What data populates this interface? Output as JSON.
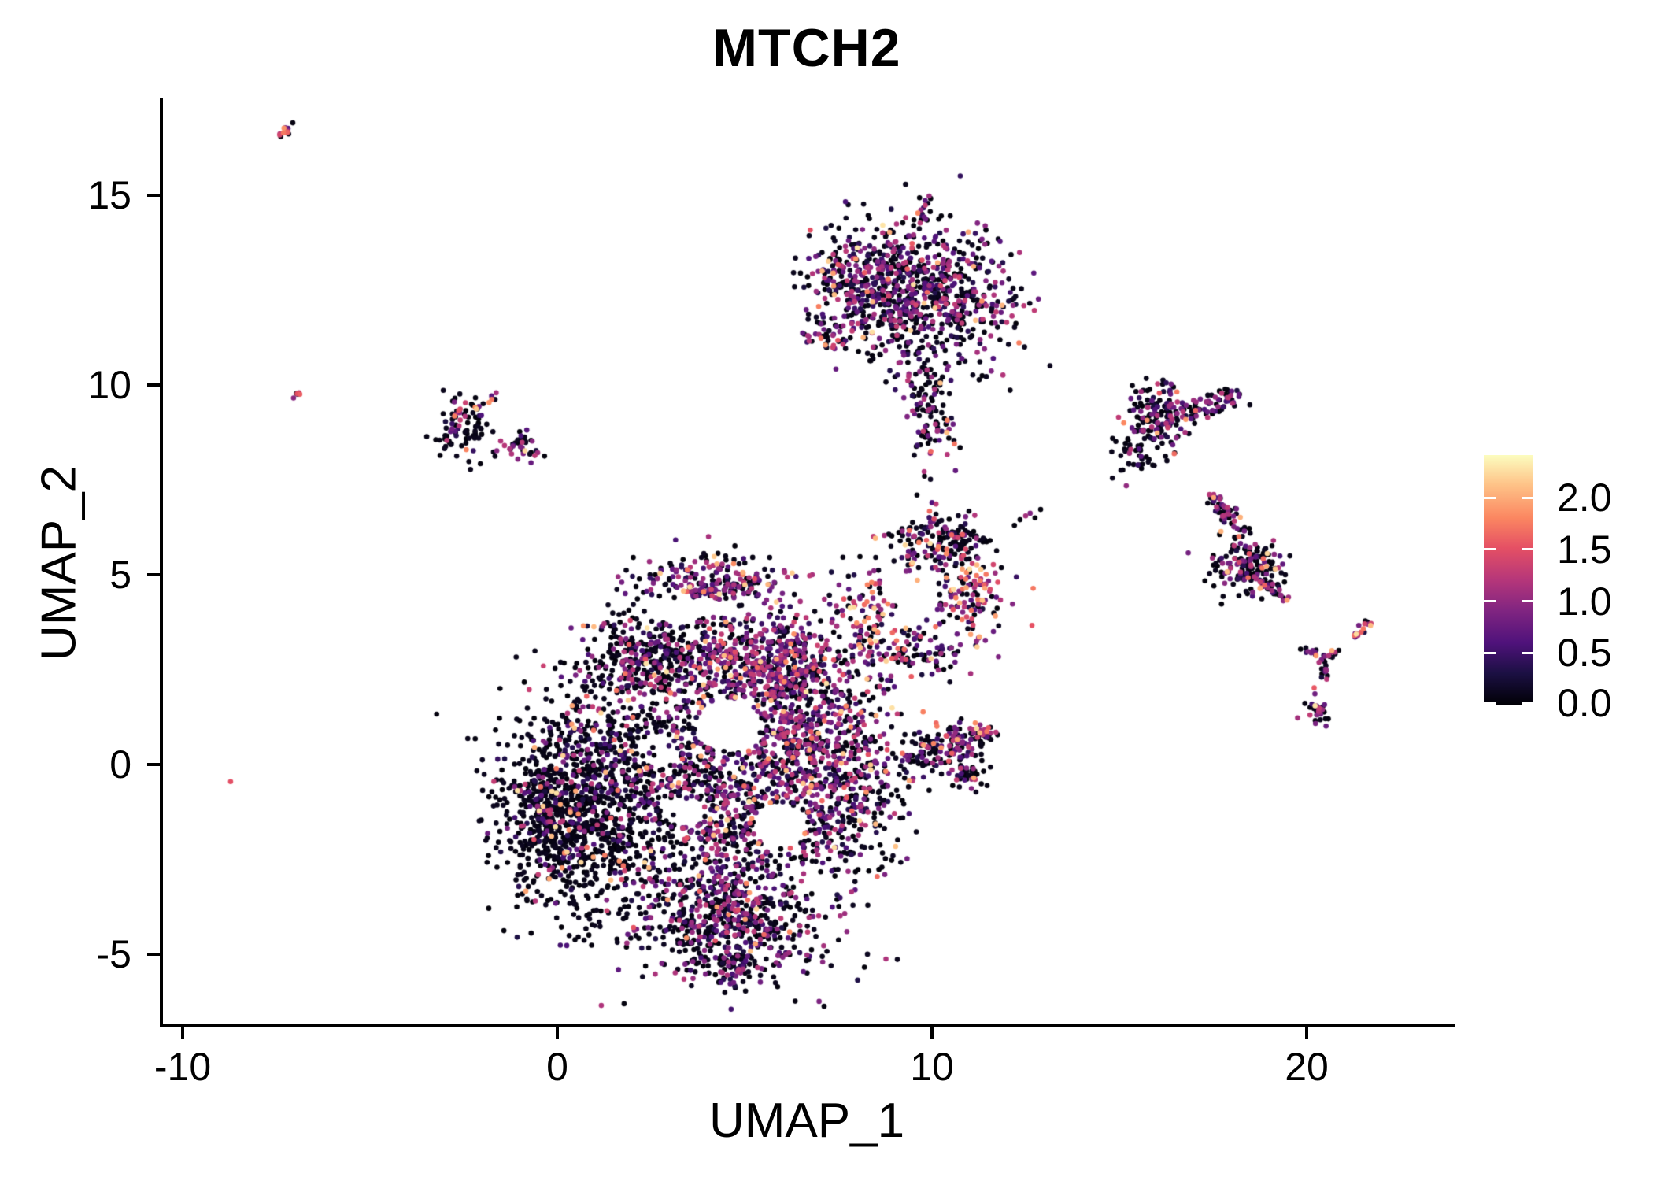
{
  "chart_data": {
    "type": "scatter",
    "title": "MTCH2",
    "xlabel": "UMAP_1",
    "ylabel": "UMAP_2",
    "xlim": [
      -10.57,
      23.89
    ],
    "ylim": [
      -6.87,
      17.51
    ],
    "grid": false,
    "x_ticks": [
      {
        "label": "-10",
        "value": -10
      },
      {
        "label": "0",
        "value": 0
      },
      {
        "label": "10",
        "value": 10
      },
      {
        "label": "20",
        "value": 20
      }
    ],
    "y_ticks": [
      {
        "label": "-5",
        "value": -5
      },
      {
        "label": "0",
        "value": 0
      },
      {
        "label": "5",
        "value": 5
      },
      {
        "label": "10",
        "value": 10
      },
      {
        "label": "15",
        "value": 15
      }
    ],
    "point_radius_px": 3.3,
    "color_scale": {
      "name": "magma",
      "domain": [
        0,
        2.4
      ],
      "legend_position": "right",
      "legend_ticks": [
        {
          "label": "2.0",
          "value": 2.0
        },
        {
          "label": "1.5",
          "value": 1.5
        },
        {
          "label": "1.0",
          "value": 1.0
        },
        {
          "label": "0.5",
          "value": 0.5
        },
        {
          "label": "0.0",
          "value": 0.0
        }
      ],
      "stops": [
        [
          0,
          "#000004"
        ],
        [
          0.13,
          "#1c1044"
        ],
        [
          0.25,
          "#4f127b"
        ],
        [
          0.38,
          "#812581"
        ],
        [
          0.5,
          "#b5367a"
        ],
        [
          0.63,
          "#e55064"
        ],
        [
          0.75,
          "#fb8761"
        ],
        [
          0.88,
          "#fec287"
        ],
        [
          1,
          "#fcfdbf"
        ]
      ]
    },
    "value_tiers": [
      [
        0.02,
        0.14
      ],
      [
        0.25,
        0.7
      ],
      [
        0.7,
        1.3
      ],
      [
        1.3,
        2.28
      ]
    ],
    "holes": [
      [
        4.6,
        1.05,
        0.85,
        0.7
      ],
      [
        5.95,
        -1.6,
        0.7,
        0.6
      ],
      [
        2.7,
        0.35,
        0.5,
        0.45
      ],
      [
        3.45,
        -1.25,
        0.5,
        0.4
      ],
      [
        3.5,
        4.12,
        1.2,
        0.28
      ],
      [
        9.7,
        4.45,
        0.5,
        0.45
      ]
    ],
    "clusters": [
      {
        "name": "top-left-streak",
        "type": "streak",
        "p": [
          -7.45,
          16.5,
          -7.1,
          16.85
        ],
        "jitter": 0.05,
        "n": 14,
        "mix": [
          0.25,
          0.2,
          0.35,
          0.2
        ]
      },
      {
        "name": "tiny-left-streak",
        "type": "streak",
        "p": [
          -7.0,
          9.68,
          -6.82,
          9.85
        ],
        "jitter": 0.04,
        "n": 8,
        "mix": [
          0.3,
          0.1,
          0.2,
          0.4
        ]
      },
      {
        "name": "left-cluster-body",
        "type": "gauss",
        "c": [
          -2.5,
          8.85
        ],
        "s": [
          0.42,
          0.42
        ],
        "rot": 0,
        "n": 80,
        "mix": [
          0.85,
          0.08,
          0.05,
          0.02
        ]
      },
      {
        "name": "left-cluster-warm-arc",
        "type": "streak",
        "p": [
          -2.75,
          9.1,
          -1.55,
          9.72
        ],
        "jitter": 0.09,
        "n": 16,
        "mix": [
          0.2,
          0.1,
          0.2,
          0.5
        ]
      },
      {
        "name": "left-cluster-purple-blob",
        "type": "gauss",
        "c": [
          -1.0,
          8.35
        ],
        "s": [
          0.25,
          0.16
        ],
        "rot": -20,
        "n": 26,
        "mix": [
          0.25,
          0.1,
          0.6,
          0.05
        ]
      },
      {
        "name": "left-cluster-east-dots",
        "type": "gauss",
        "c": [
          -0.85,
          8.6
        ],
        "s": [
          0.15,
          0.2
        ],
        "rot": 0,
        "n": 10,
        "mix": [
          0.8,
          0.1,
          0.1,
          0
        ]
      },
      {
        "name": "top-cluster-body",
        "type": "gauss",
        "c": [
          9.7,
          12.4
        ],
        "s": [
          1.25,
          0.95
        ],
        "rot": -8,
        "n": 780,
        "mix": [
          0.52,
          0.18,
          0.26,
          0.04
        ]
      },
      {
        "name": "top-cluster-left-lobe",
        "type": "gauss",
        "c": [
          7.9,
          12.8
        ],
        "s": [
          0.55,
          0.6
        ],
        "rot": 0,
        "n": 170,
        "mix": [
          0.45,
          0.2,
          0.3,
          0.05
        ]
      },
      {
        "name": "top-cluster-left-arm",
        "type": "gauss",
        "c": [
          7.25,
          11.35
        ],
        "s": [
          0.3,
          0.25
        ],
        "rot": 0,
        "n": 40,
        "mix": [
          0.35,
          0.15,
          0.3,
          0.2
        ]
      },
      {
        "name": "top-cluster-neck",
        "type": "gauss",
        "c": [
          9.95,
          9.5
        ],
        "s": [
          0.3,
          0.8
        ],
        "rot": 5,
        "n": 120,
        "mix": [
          0.62,
          0.14,
          0.2,
          0.04
        ]
      },
      {
        "name": "top-cluster-top-streak",
        "type": "streak",
        "p": [
          9.72,
          14.35,
          9.93,
          14.98
        ],
        "jitter": 0.06,
        "n": 11,
        "mix": [
          0.5,
          0.2,
          0.3,
          0
        ]
      },
      {
        "name": "top-cluster-neck-tip-dots",
        "type": "points",
        "pts": [
          [
            10.6,
            8.45,
            1.7
          ],
          [
            10.75,
            8.35,
            0.05
          ],
          [
            10.45,
            8.6,
            0.05
          ],
          [
            9.8,
            7.6,
            0.05
          ],
          [
            9.6,
            7.1,
            0.05
          ],
          [
            10.0,
            6.9,
            0.6
          ]
        ]
      },
      {
        "name": "bridge-dots",
        "type": "points",
        "pts": [
          [
            12.35,
            6.45,
            0.05
          ],
          [
            12.5,
            6.55,
            1.1
          ],
          [
            12.62,
            6.62,
            0.9
          ],
          [
            12.75,
            6.5,
            0.05
          ],
          [
            12.9,
            6.72,
            0.05
          ],
          [
            11.55,
            5.9,
            0.05
          ],
          [
            12.2,
            6.3,
            0.05
          ]
        ]
      },
      {
        "name": "mid-right-top-arc",
        "type": "gauss",
        "c": [
          10.0,
          5.85
        ],
        "s": [
          0.6,
          0.42
        ],
        "rot": -12,
        "n": 120,
        "mix": [
          0.55,
          0.1,
          0.2,
          0.15
        ]
      },
      {
        "name": "mid-right-black-clump",
        "type": "gauss",
        "c": [
          10.75,
          5.95
        ],
        "s": [
          0.3,
          0.3
        ],
        "rot": 0,
        "n": 55,
        "mix": [
          0.82,
          0.08,
          0.1,
          0
        ]
      },
      {
        "name": "mid-right-east-lobe",
        "type": "gauss",
        "c": [
          10.95,
          4.35
        ],
        "s": [
          0.5,
          0.7
        ],
        "rot": 10,
        "n": 130,
        "mix": [
          0.3,
          0.12,
          0.28,
          0.3
        ],
        "rh": true
      },
      {
        "name": "mid-right-west-arc",
        "type": "gauss",
        "c": [
          8.35,
          3.7
        ],
        "s": [
          0.42,
          0.75
        ],
        "rot": 0,
        "n": 110,
        "mix": [
          0.38,
          0.15,
          0.22,
          0.25
        ],
        "rh": true
      },
      {
        "name": "mid-right-south",
        "type": "gauss",
        "c": [
          9.6,
          2.95
        ],
        "s": [
          0.7,
          0.4
        ],
        "rot": 0,
        "n": 90,
        "mix": [
          0.45,
          0.2,
          0.25,
          0.1
        ],
        "rh": true
      },
      {
        "name": "main-left-lobe",
        "type": "gauss",
        "c": [
          0.55,
          -1.1
        ],
        "s": [
          1.05,
          1.45
        ],
        "rot": 12,
        "n": 1050,
        "mix": [
          0.8,
          0.09,
          0.07,
          0.04
        ]
      },
      {
        "name": "main-left-edge",
        "type": "gauss",
        "c": [
          -0.3,
          -1.4
        ],
        "s": [
          0.3,
          0.9
        ],
        "rot": 0,
        "n": 150,
        "mix": [
          0.88,
          0.06,
          0.04,
          0.02
        ]
      },
      {
        "name": "main-crown",
        "type": "gauss",
        "c": [
          4.2,
          4.85
        ],
        "s": [
          1.0,
          0.33
        ],
        "rot": 0,
        "n": 220,
        "mix": [
          0.42,
          0.18,
          0.3,
          0.1
        ],
        "rh": true
      },
      {
        "name": "main-upper-band-west",
        "type": "gauss",
        "c": [
          2.5,
          2.9
        ],
        "s": [
          0.85,
          0.62
        ],
        "rot": 0,
        "n": 380,
        "mix": [
          0.68,
          0.12,
          0.17,
          0.03
        ],
        "rh": true
      },
      {
        "name": "main-upper-band-east",
        "type": "gauss",
        "c": [
          5.3,
          2.7
        ],
        "s": [
          1.05,
          0.6
        ],
        "rot": 0,
        "n": 430,
        "mix": [
          0.3,
          0.2,
          0.42,
          0.08
        ],
        "rh": true
      },
      {
        "name": "main-center-west",
        "type": "gauss",
        "c": [
          2.9,
          0.3
        ],
        "s": [
          1.05,
          1.05
        ],
        "rot": 0,
        "n": 360,
        "mix": [
          0.55,
          0.2,
          0.2,
          0.05
        ],
        "rh": true
      },
      {
        "name": "main-center-east",
        "type": "gauss",
        "c": [
          6.3,
          1.0
        ],
        "s": [
          0.85,
          1.5
        ],
        "rot": 0,
        "n": 620,
        "mix": [
          0.36,
          0.2,
          0.37,
          0.07
        ],
        "rh": true
      },
      {
        "name": "main-center-south",
        "type": "gauss",
        "c": [
          4.9,
          -1.5
        ],
        "s": [
          1.3,
          0.9
        ],
        "rot": 0,
        "n": 430,
        "mix": [
          0.5,
          0.2,
          0.25,
          0.05
        ],
        "rh": true
      },
      {
        "name": "main-right-lobe",
        "type": "gauss",
        "c": [
          7.8,
          -0.4
        ],
        "s": [
          0.8,
          1.3
        ],
        "rot": 0,
        "n": 380,
        "mix": [
          0.5,
          0.18,
          0.27,
          0.05
        ],
        "rh": true
      },
      {
        "name": "main-bottom-lobe",
        "type": "gauss",
        "c": [
          4.6,
          -4.1
        ],
        "s": [
          1.35,
          0.85
        ],
        "rot": -8,
        "n": 640,
        "mix": [
          0.55,
          0.16,
          0.25,
          0.04
        ]
      },
      {
        "name": "main-bottom-tip",
        "type": "gauss",
        "c": [
          4.75,
          -5.35
        ],
        "s": [
          0.3,
          0.22
        ],
        "rot": 0,
        "n": 55,
        "mix": [
          0.5,
          0.2,
          0.3,
          0
        ]
      },
      {
        "name": "main-east-arm",
        "type": "streak",
        "p": [
          9.2,
          0.1,
          11.3,
          0.75
        ],
        "jitter": 0.28,
        "n": 150,
        "mix": [
          0.5,
          0.14,
          0.28,
          0.08
        ]
      },
      {
        "name": "east-arm-tip",
        "type": "gauss",
        "c": [
          11.45,
          0.82
        ],
        "s": [
          0.16,
          0.13
        ],
        "rot": 0,
        "n": 18,
        "mix": [
          0.1,
          0.1,
          0.5,
          0.3
        ]
      },
      {
        "name": "east-arm-south-blob",
        "type": "gauss",
        "c": [
          10.9,
          -0.2
        ],
        "s": [
          0.32,
          0.22
        ],
        "rot": 0,
        "n": 45,
        "mix": [
          0.6,
          0.12,
          0.23,
          0.05
        ]
      },
      {
        "name": "right-upper-blob",
        "type": "gauss",
        "c": [
          16.0,
          9.15
        ],
        "s": [
          0.45,
          0.45
        ],
        "rot": 0,
        "n": 150,
        "mix": [
          0.52,
          0.16,
          0.27,
          0.05
        ]
      },
      {
        "name": "right-upper-arm",
        "type": "streak",
        "p": [
          16.6,
          9.25,
          18.15,
          9.7
        ],
        "jitter": 0.16,
        "n": 70,
        "mix": [
          0.5,
          0.14,
          0.3,
          0.06
        ]
      },
      {
        "name": "right-upper-tail",
        "type": "gauss",
        "c": [
          15.5,
          8.25
        ],
        "s": [
          0.4,
          0.3
        ],
        "rot": 20,
        "n": 45,
        "mix": [
          0.85,
          0.06,
          0.09,
          0
        ]
      },
      {
        "name": "right-lower-arc",
        "type": "streak",
        "p": [
          17.55,
          7.05,
          18.1,
          6.2
        ],
        "jitter": 0.14,
        "n": 50,
        "mix": [
          0.55,
          0.15,
          0.26,
          0.04
        ]
      },
      {
        "name": "right-lower-blob",
        "type": "gauss",
        "c": [
          18.5,
          5.2
        ],
        "s": [
          0.5,
          0.45
        ],
        "rot": -30,
        "n": 170,
        "mix": [
          0.6,
          0.12,
          0.24,
          0.04
        ]
      },
      {
        "name": "right-lower-tip",
        "type": "streak",
        "p": [
          18.85,
          4.75,
          19.45,
          4.4
        ],
        "jitter": 0.08,
        "n": 22,
        "mix": [
          0.35,
          0.1,
          0.45,
          0.1
        ]
      },
      {
        "name": "far-right-streak",
        "type": "streak",
        "p": [
          21.25,
          3.35,
          21.65,
          3.75
        ],
        "jitter": 0.05,
        "n": 16,
        "mix": [
          0.1,
          0.15,
          0.6,
          0.15
        ]
      },
      {
        "name": "far-right-y-left",
        "type": "streak",
        "p": [
          19.95,
          3.1,
          20.4,
          2.75
        ],
        "jitter": 0.06,
        "n": 12,
        "mix": [
          0.5,
          0.1,
          0.35,
          0.05
        ]
      },
      {
        "name": "far-right-y-right",
        "type": "streak",
        "p": [
          20.8,
          3.05,
          20.48,
          2.75
        ],
        "jitter": 0.06,
        "n": 10,
        "mix": [
          0.5,
          0.1,
          0.35,
          0.05
        ]
      },
      {
        "name": "far-right-y-stem",
        "type": "streak",
        "p": [
          20.45,
          2.72,
          20.52,
          2.3
        ],
        "jitter": 0.06,
        "n": 14,
        "mix": [
          0.55,
          0.1,
          0.3,
          0.05
        ]
      },
      {
        "name": "far-right-pair",
        "type": "points",
        "pts": [
          [
            20.2,
            2.02,
            1.55
          ],
          [
            20.22,
            1.86,
            0.8
          ]
        ]
      },
      {
        "name": "far-right-blob",
        "type": "gauss",
        "c": [
          20.3,
          1.38
        ],
        "s": [
          0.18,
          0.16
        ],
        "rot": 0,
        "n": 30,
        "mix": [
          0.42,
          0.15,
          0.4,
          0.03
        ]
      },
      {
        "name": "lone-pink-dot",
        "type": "points",
        "pts": [
          [
            -8.72,
            -0.45,
            1.5
          ]
        ]
      }
    ]
  }
}
